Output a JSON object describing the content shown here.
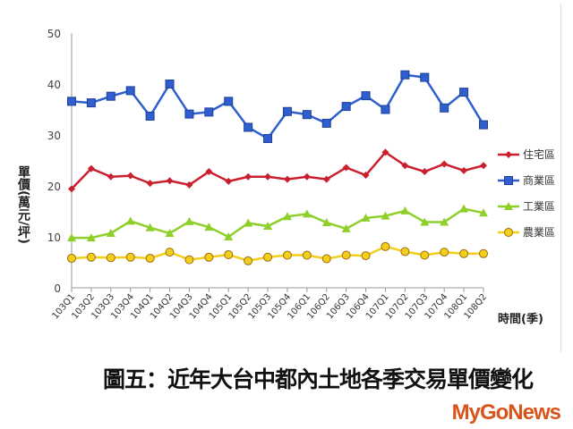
{
  "chart_data": {
    "type": "line",
    "title": "圖五：近年大台中都內土地各季交易單價變化",
    "xlabel": "時間(季)",
    "ylabel": "單價(萬元/坪)",
    "ylim": [
      0,
      50
    ],
    "yticks": [
      "0",
      "10",
      "20",
      "30",
      "40",
      "50"
    ],
    "grid": false,
    "legend": "right",
    "categories": [
      "103Q1",
      "103Q2",
      "103Q3",
      "103Q4",
      "104Q1",
      "104Q2",
      "104Q3",
      "104Q4",
      "105Q1",
      "105Q2",
      "105Q3",
      "105Q4",
      "106Q1",
      "106Q2",
      "106Q3",
      "106Q4",
      "107Q1",
      "107Q2",
      "107Q3",
      "107Q4",
      "108Q1",
      "108Q2"
    ],
    "series": [
      {
        "name": "住宅區",
        "color": "#cc1f2e",
        "marker": "diamond",
        "values": [
          19.4,
          23.4,
          21.8,
          22.0,
          20.5,
          21.0,
          20.2,
          22.8,
          20.9,
          21.8,
          21.8,
          21.3,
          21.8,
          21.3,
          23.6,
          22.1,
          26.6,
          24.0,
          22.8,
          24.3,
          23.0,
          24.0
        ]
      },
      {
        "name": "商業區",
        "color": "#2f5fcf",
        "marker": "square",
        "values": [
          36.6,
          36.3,
          37.6,
          38.7,
          33.7,
          40.0,
          34.1,
          34.5,
          36.6,
          31.5,
          29.3,
          34.6,
          34.0,
          32.3,
          35.6,
          37.7,
          35.0,
          41.8,
          41.3,
          35.3,
          38.4,
          32.0
        ]
      },
      {
        "name": "工業區",
        "color": "#8fcf2a",
        "marker": "triangle",
        "values": [
          9.8,
          9.8,
          10.7,
          13.1,
          11.8,
          10.7,
          13.0,
          11.9,
          10.0,
          12.7,
          12.1,
          14.0,
          14.5,
          12.8,
          11.6,
          13.7,
          14.1,
          15.1,
          12.9,
          12.9,
          15.5,
          14.7
        ]
      },
      {
        "name": "農業區",
        "color": "#f2cf1a",
        "marker": "circle",
        "values": [
          5.8,
          6.0,
          5.9,
          6.0,
          5.8,
          7.0,
          5.5,
          6.0,
          6.5,
          5.3,
          6.0,
          6.4,
          6.4,
          5.7,
          6.4,
          6.3,
          8.1,
          7.1,
          6.4,
          7.0,
          6.7,
          6.7
        ]
      }
    ]
  },
  "watermark": "MyGoNews"
}
